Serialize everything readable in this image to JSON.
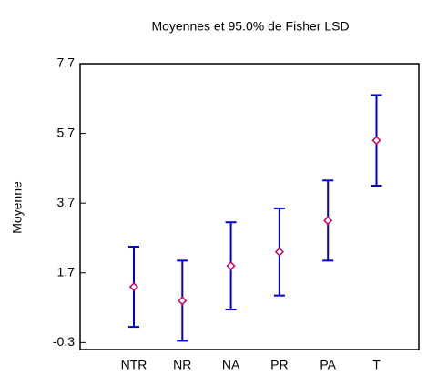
{
  "chart_data": {
    "type": "errorbar",
    "title": "Moyennes et 95.0% de Fisher LSD",
    "ylabel": "Moyenne",
    "categories": [
      "NTR",
      "NR",
      "NA",
      "PR",
      "PA",
      "T"
    ],
    "values": [
      1.3,
      0.9,
      1.9,
      2.3,
      3.2,
      5.5
    ],
    "errors": [
      1.15,
      1.15,
      1.25,
      1.25,
      1.15,
      1.3
    ],
    "color": "#0000cc",
    "marker_color": "#cc0066",
    "ylim": [
      -0.5,
      7.7
    ],
    "yticks": [
      -0.3,
      1.7,
      3.7,
      5.7,
      7.7
    ]
  }
}
